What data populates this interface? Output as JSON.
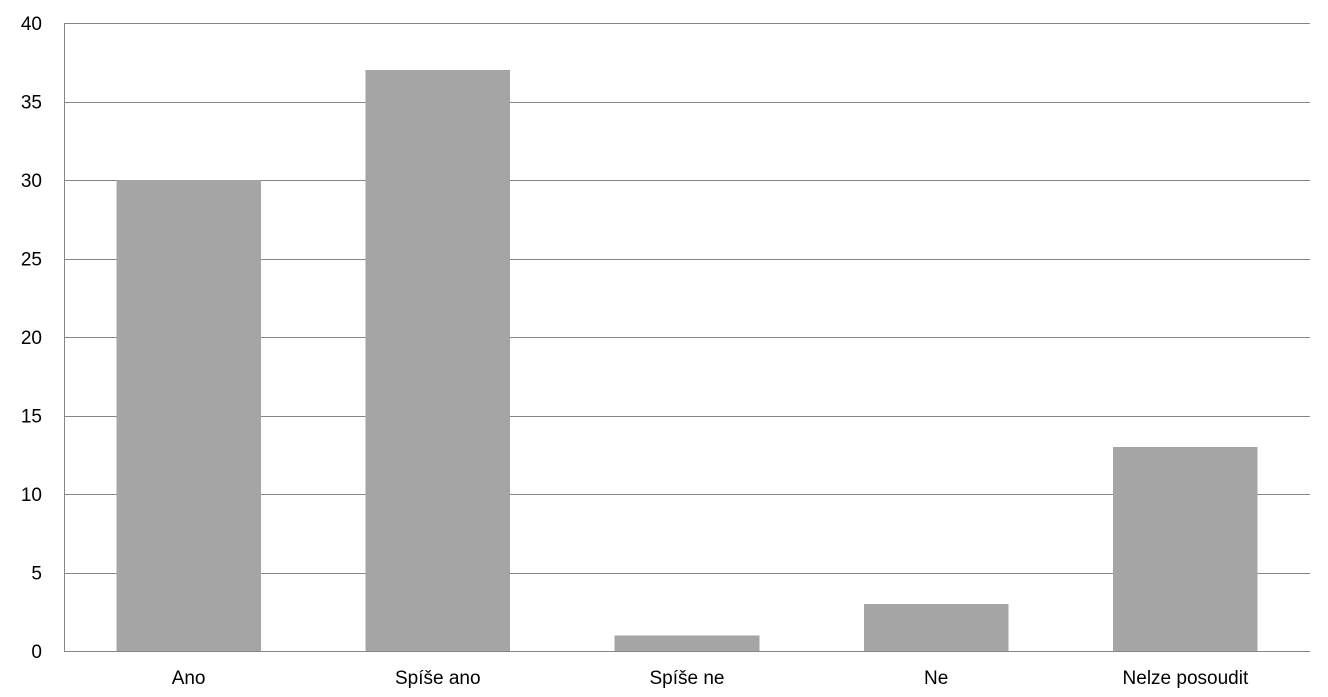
{
  "chart_data": {
    "type": "bar",
    "categories": [
      "Ano",
      "Spíše ano",
      "Spíše ne",
      "Ne",
      "Nelze posoudit"
    ],
    "values": [
      30,
      37,
      1,
      3,
      13
    ],
    "title": "",
    "xlabel": "",
    "ylabel": "",
    "ylim": [
      0,
      40
    ],
    "yticks": [
      "0",
      "5",
      "10",
      "15",
      "20",
      "25",
      "30",
      "35",
      "40"
    ],
    "grid": true,
    "legend": "none",
    "bar_color": "#a5a5a5"
  }
}
